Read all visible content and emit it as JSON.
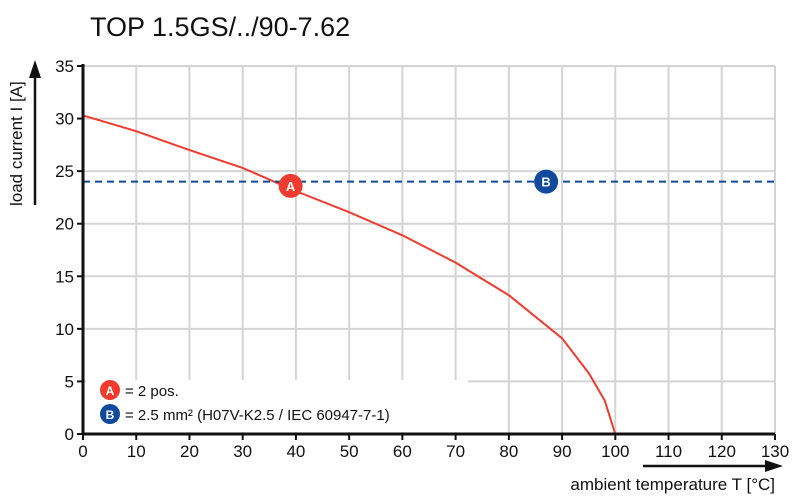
{
  "chart_data": {
    "type": "line",
    "title": "TOP 1.5GS/../90-7.62",
    "xlabel": "ambient temperature T [°C]",
    "ylabel": "load current I [A]",
    "xlim": [
      0,
      130
    ],
    "ylim": [
      0,
      35
    ],
    "xticks": [
      0,
      10,
      20,
      30,
      40,
      50,
      60,
      70,
      80,
      90,
      100,
      110,
      120,
      130
    ],
    "yticks": [
      0,
      5,
      10,
      15,
      20,
      25,
      30,
      35
    ],
    "grid": true,
    "series": [
      {
        "marker_label": "A",
        "color": "#f03c2e",
        "style": "solid",
        "x": [
          0,
          10,
          20,
          30,
          40,
          50,
          60,
          70,
          80,
          90,
          95,
          98,
          100
        ],
        "y": [
          30.3,
          28.8,
          27.0,
          25.3,
          23.1,
          21.1,
          18.9,
          16.3,
          13.2,
          9.1,
          5.8,
          3.2,
          0
        ]
      },
      {
        "marker_label": "B",
        "color": "#0f4a9c",
        "style": "dashed",
        "x": [
          0,
          130
        ],
        "y": [
          24,
          24
        ]
      }
    ],
    "markers": [
      {
        "label": "A",
        "x": 39,
        "y": 23.6,
        "color": "#f03c2e"
      },
      {
        "label": "B",
        "x": 87,
        "y": 24,
        "color": "#0f4a9c"
      }
    ],
    "legend": {
      "placement": "bottom-left",
      "entries": [
        {
          "label": "A",
          "text": "= 2 pos.",
          "color": "#f03c2e"
        },
        {
          "label": "B",
          "text": "= 2.5 mm² (H07V-K2.5 / IEC 60947-7-1)",
          "color": "#0f4a9c"
        }
      ]
    }
  }
}
